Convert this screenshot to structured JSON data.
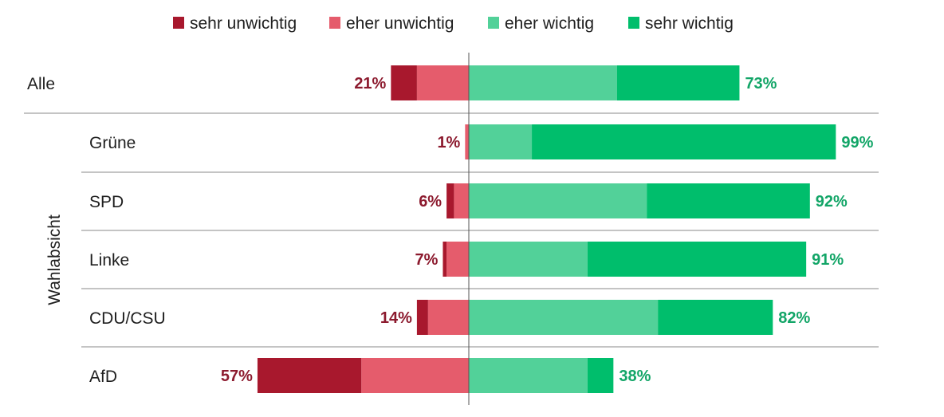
{
  "chart_data": {
    "type": "bar",
    "orientation": "horizontal-diverging",
    "legend": [
      {
        "name": "sehr unwichtig",
        "color": "#a8182d"
      },
      {
        "name": "eher unwichtig",
        "color": "#e55c6c"
      },
      {
        "name": "eher wichtig",
        "color": "#52d199"
      },
      {
        "name": "sehr wichtig",
        "color": "#00be6c"
      }
    ],
    "group_label": "Wahlabsicht",
    "rows": [
      {
        "label": "Alle",
        "sehr_unwichtig": 7,
        "eher_unwichtig": 14,
        "eher_wichtig": 40,
        "sehr_wichtig": 33,
        "neg_total": "21%",
        "pos_total": "73%"
      },
      {
        "label": "Grüne",
        "sehr_unwichtig": 0,
        "eher_unwichtig": 1,
        "eher_wichtig": 17,
        "sehr_wichtig": 82,
        "neg_total": "1%",
        "pos_total": "99%"
      },
      {
        "label": "SPD",
        "sehr_unwichtig": 2,
        "eher_unwichtig": 4,
        "eher_wichtig": 48,
        "sehr_wichtig": 44,
        "neg_total": "6%",
        "pos_total": "92%"
      },
      {
        "label": "Linke",
        "sehr_unwichtig": 1,
        "eher_unwichtig": 6,
        "eher_wichtig": 32,
        "sehr_wichtig": 59,
        "neg_total": "7%",
        "pos_total": "91%"
      },
      {
        "label": "CDU/CSU",
        "sehr_unwichtig": 3,
        "eher_unwichtig": 11,
        "eher_wichtig": 51,
        "sehr_wichtig": 31,
        "neg_total": "14%",
        "pos_total": "82%"
      },
      {
        "label": "AfD",
        "sehr_unwichtig": 28,
        "eher_unwichtig": 29,
        "eher_wichtig": 32,
        "sehr_wichtig": 7,
        "neg_total": "57%",
        "pos_total": "38%"
      }
    ]
  }
}
